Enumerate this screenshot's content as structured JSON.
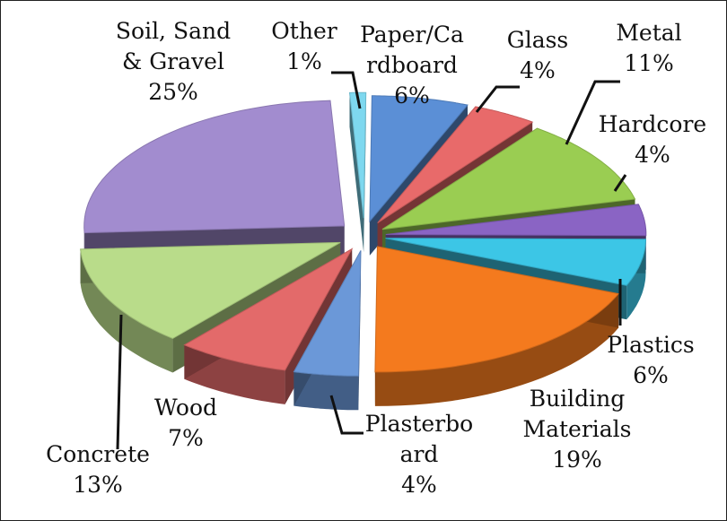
{
  "chart_data": {
    "type": "pie",
    "title": "",
    "slices": [
      {
        "name_lines": [
          "Paper/Ca",
          "rdboard"
        ],
        "label": "Paper/Cardboard",
        "value": 6,
        "value_text": "6%",
        "color": "#5b8fd6"
      },
      {
        "name_lines": [
          "Glass"
        ],
        "label": "Glass",
        "value": 4,
        "value_text": "4%",
        "color": "#e86a6a"
      },
      {
        "name_lines": [
          "Metal"
        ],
        "label": "Metal",
        "value": 11,
        "value_text": "11%",
        "color": "#9acd52"
      },
      {
        "name_lines": [
          "Hardcore"
        ],
        "label": "Hardcore",
        "value": 4,
        "value_text": "4%",
        "color": "#8a64c4"
      },
      {
        "name_lines": [
          "Plastics"
        ],
        "label": "Plastics",
        "value": 6,
        "value_text": "6%",
        "color": "#3cc6e6"
      },
      {
        "name_lines": [
          "Building",
          "Materials"
        ],
        "label": "Building Materials",
        "value": 19,
        "value_text": "19%",
        "color": "#f47a1e"
      },
      {
        "name_lines": [
          "Plasterbo",
          "ard"
        ],
        "label": "Plasterboard",
        "value": 4,
        "value_text": "4%",
        "color": "#6b98d8"
      },
      {
        "name_lines": [
          "Wood"
        ],
        "label": "Wood",
        "value": 7,
        "value_text": "7%",
        "color": "#e36a6a"
      },
      {
        "name_lines": [
          "Concrete"
        ],
        "label": "Concrete",
        "value": 13,
        "value_text": "13%",
        "color": "#b9dc8a"
      },
      {
        "name_lines": [
          "Soil, Sand",
          "& Gravel"
        ],
        "label": "Soil, Sand & Gravel",
        "value": 25,
        "value_text": "25%",
        "color": "#a28ccf"
      },
      {
        "name_lines": [
          "Other"
        ],
        "label": "Other",
        "value": 1,
        "value_text": "1%",
        "color": "#7ed8ef"
      }
    ]
  }
}
